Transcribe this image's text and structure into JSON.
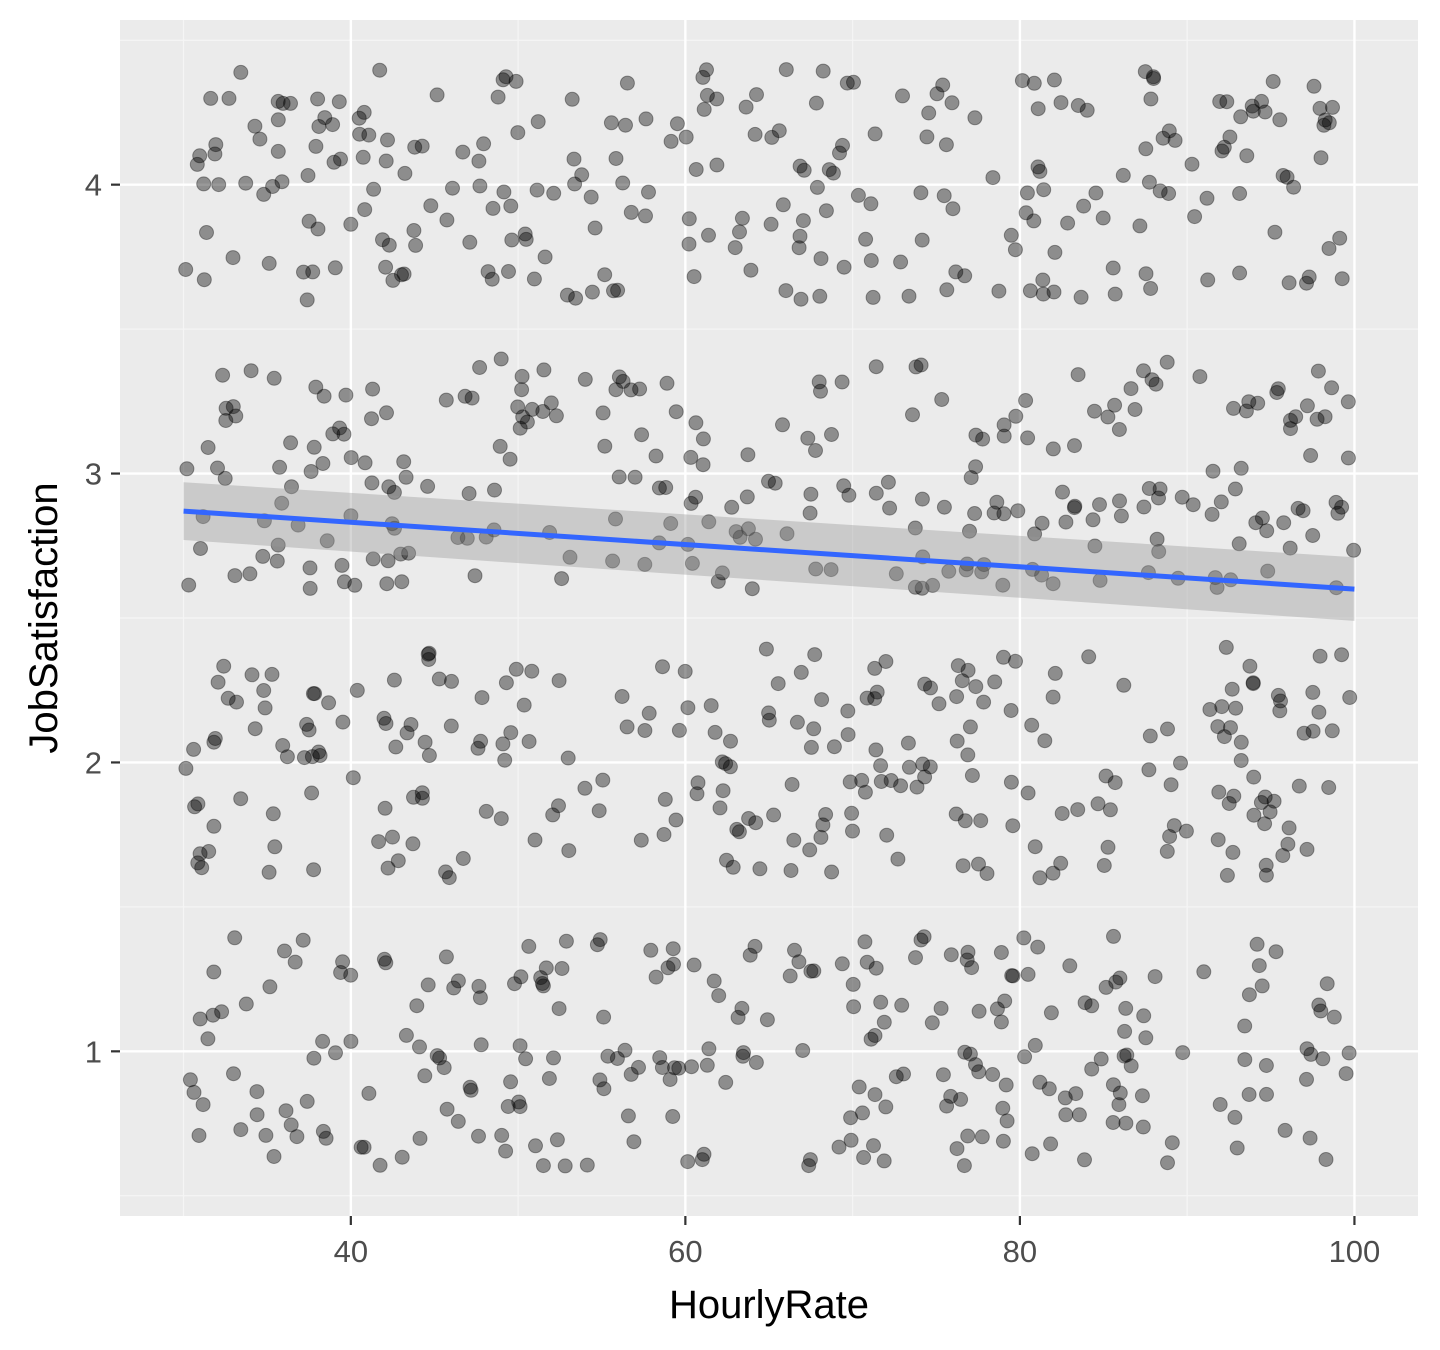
{
  "chart_data": {
    "type": "scatter",
    "title": "",
    "xlabel": "HourlyRate",
    "ylabel": "JobSatisfaction",
    "xlim": [
      26.2,
      103.8
    ],
    "ylim": [
      0.43,
      4.57
    ],
    "x_ticks": [
      40,
      60,
      80,
      100
    ],
    "x_tick_labels": [
      "40",
      "60",
      "80",
      "100"
    ],
    "y_ticks": [
      1,
      2,
      3,
      4
    ],
    "y_tick_labels": [
      "1",
      "2",
      "3",
      "4"
    ],
    "x_range": [
      30,
      100
    ],
    "y_levels": [
      1,
      2,
      3,
      4
    ],
    "jitter_height": 0.4,
    "n_points_per_level": 260,
    "grid": true,
    "legend": "none",
    "colors": {
      "panel_background": "#ebebeb",
      "grid_major": "#ffffff",
      "grid_minor": "#f5f5f5",
      "point_fill": "#000000",
      "point_opacity": 0.4,
      "trend_line": "#3366ff",
      "confidence_band": "#999999",
      "tick_label": "#4d4d4d",
      "axis_title": "#000000"
    },
    "trend": {
      "method": "linear",
      "x": [
        30,
        100
      ],
      "y": [
        2.87,
        2.6
      ],
      "ci_lower": [
        2.77,
        2.49
      ],
      "ci_upper": [
        2.97,
        2.71
      ]
    }
  }
}
